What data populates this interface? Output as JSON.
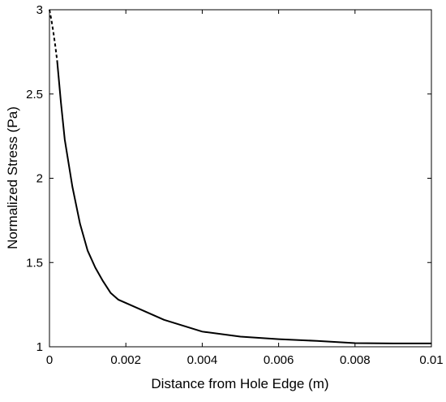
{
  "chart_data": {
    "type": "line",
    "title": "",
    "xlabel": "Distance from Hole Edge (m)",
    "ylabel": "Normalized Stress (Pa)",
    "xlim": [
      0,
      0.01
    ],
    "ylim": [
      1,
      3
    ],
    "grid": false,
    "legend": "none",
    "x_ticks": [
      0,
      0.002,
      0.004,
      0.006,
      0.008,
      0.01
    ],
    "x_tick_labels": [
      "0",
      "0.002",
      "0.004",
      "0.006",
      "0.008",
      "0.01"
    ],
    "y_ticks": [
      1,
      1.5,
      2,
      2.5,
      3
    ],
    "y_tick_labels": [
      "1",
      "1.5",
      "2",
      "2.5",
      "3"
    ],
    "series": [
      {
        "style": "dashed",
        "color": "#000000",
        "x": [
          0,
          5e-05,
          0.0001,
          0.00015,
          0.0002
        ],
        "y": [
          3.0,
          2.94,
          2.87,
          2.79,
          2.7
        ]
      },
      {
        "style": "solid",
        "color": "#000000",
        "x": [
          0.0002,
          0.0003,
          0.0004,
          0.0006,
          0.0008,
          0.001,
          0.0012,
          0.0014,
          0.0016,
          0.0018,
          0.002,
          0.0025,
          0.003,
          0.004,
          0.005,
          0.006,
          0.007,
          0.008,
          0.009,
          0.01
        ],
        "y": [
          2.7,
          2.45,
          2.23,
          1.95,
          1.73,
          1.57,
          1.47,
          1.39,
          1.32,
          1.28,
          1.26,
          1.21,
          1.16,
          1.09,
          1.06,
          1.045,
          1.035,
          1.022,
          1.02,
          1.02
        ]
      }
    ]
  }
}
